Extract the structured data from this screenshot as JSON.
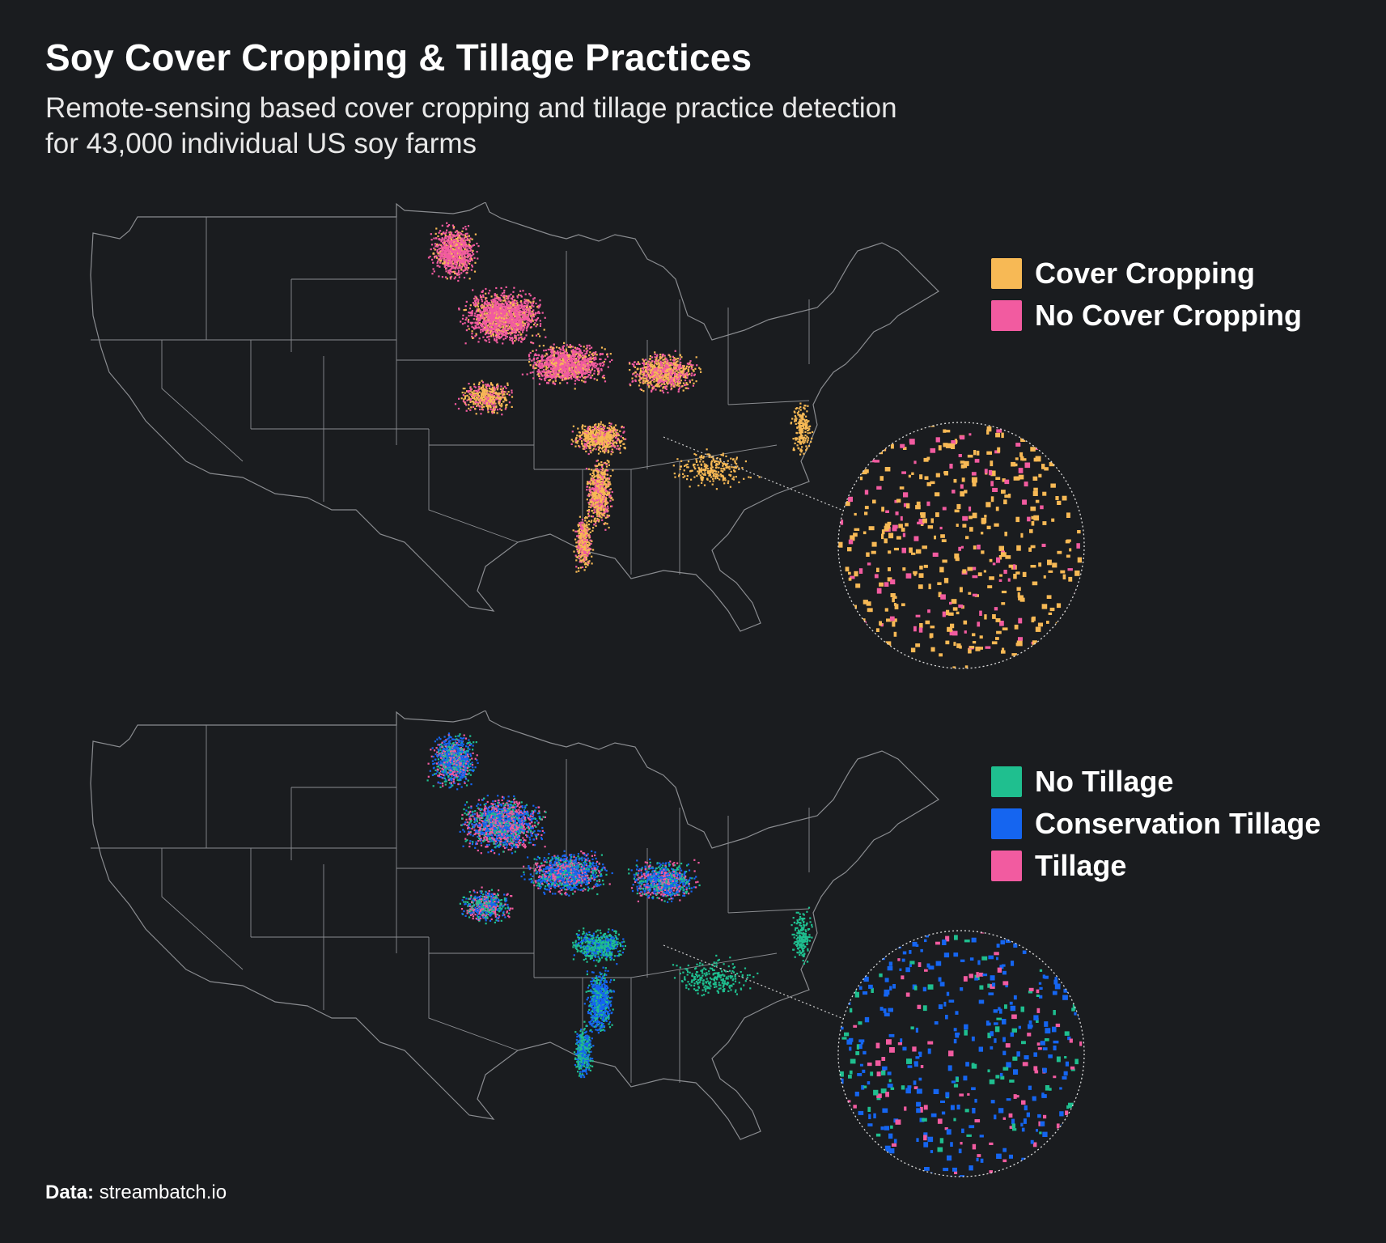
{
  "header": {
    "title": "Soy Cover Cropping & Tillage Practices",
    "subtitle": "Remote-sensing based cover cropping and tillage practice detection for 43,000 individual US soy farms"
  },
  "colors": {
    "background": "#1a1c1f",
    "borders": "#8a8c90",
    "cover_cropping": "#f7b955",
    "no_cover_cropping": "#f25ba0",
    "no_tillage": "#1fbf8f",
    "conservation_tillage": "#1565f0",
    "tillage": "#f25ba0"
  },
  "maps": [
    {
      "id": "cover",
      "legend": [
        {
          "label": "Cover Cropping",
          "color": "#f7b955"
        },
        {
          "label": "No Cover Cropping",
          "color": "#f25ba0"
        }
      ]
    },
    {
      "id": "tillage",
      "legend": [
        {
          "label": "No Tillage",
          "color": "#1fbf8f"
        },
        {
          "label": "Conservation Tillage",
          "color": "#1565f0"
        },
        {
          "label": "Tillage",
          "color": "#f25ba0"
        }
      ]
    }
  ],
  "footer": {
    "source_label": "Data:",
    "source_value": "streambatch.io"
  }
}
